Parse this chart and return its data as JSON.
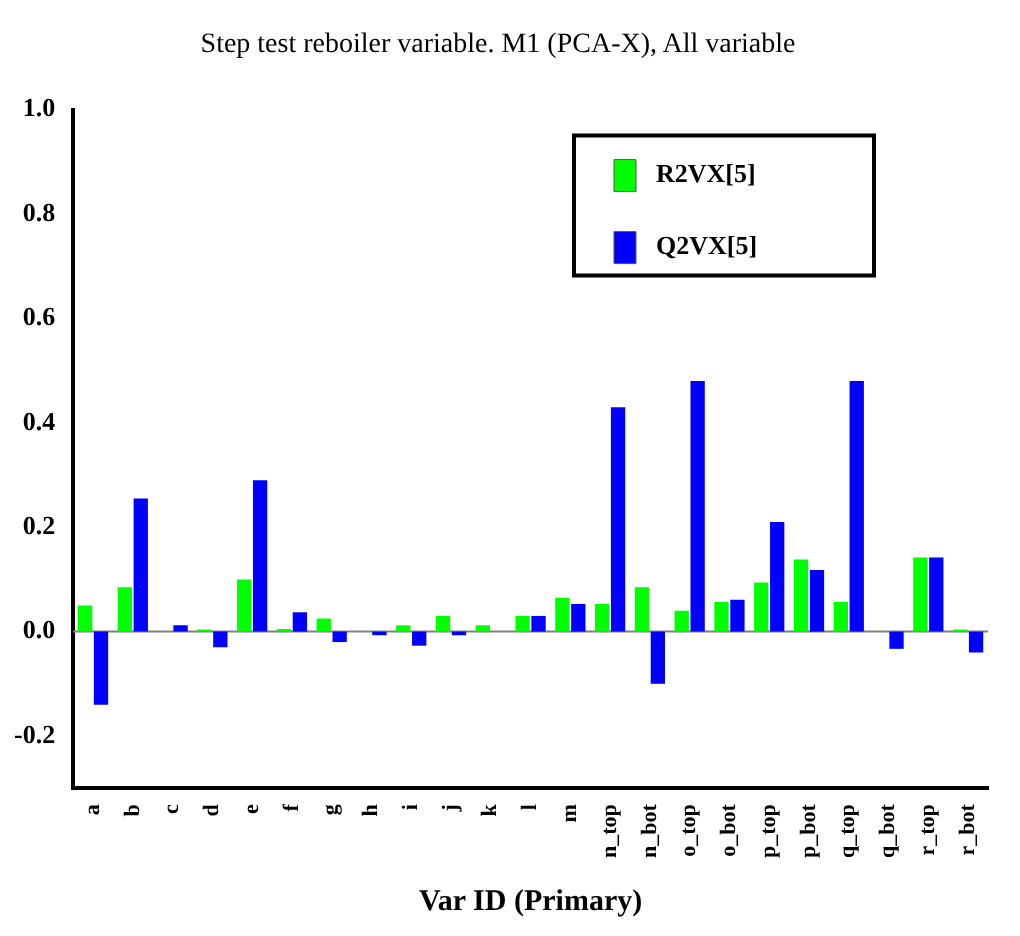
{
  "chart_data": {
    "type": "bar",
    "title": "Step test reboiler variable. M1 (PCA-X), All variable",
    "xlabel": "Var ID (Primary)",
    "categories": [
      "a",
      "b",
      "c",
      "d",
      "e",
      "f",
      "g",
      "h",
      "i",
      "j",
      "k",
      "l",
      "m",
      "n_top",
      "n_bot",
      "o_top",
      "o_bot",
      "p_top",
      "p_bot",
      "q_top",
      "q_bot",
      "r_top",
      "r_bot"
    ],
    "series": [
      {
        "name": "R2VX[5]",
        "color": "#00ff00",
        "values": [
          0.05,
          0.085,
          0,
          0.004,
          0.1,
          0.005,
          0.025,
          0,
          0.012,
          0.03,
          0.012,
          0.03,
          0.065,
          0.053,
          0.085,
          0.04,
          0.057,
          0.094,
          0.138,
          0.057,
          0,
          0.142,
          0.004
        ]
      },
      {
        "name": "Q2VX[5]",
        "color": "#0000ff",
        "values": [
          -0.14,
          0.255,
          0.012,
          -0.03,
          0.29,
          0.037,
          -0.02,
          -0.007,
          -0.027,
          -0.007,
          0,
          0.03,
          0.053,
          0.43,
          -0.1,
          0.48,
          0.061,
          0.21,
          0.118,
          0.48,
          -0.033,
          0.142,
          -0.04
        ]
      }
    ],
    "ylim": [
      -0.3,
      1.0
    ],
    "yticks": [
      {
        "value": -0.2,
        "label": "-0.2"
      },
      {
        "value": 0,
        "label": "0.0"
      },
      {
        "value": 0.2,
        "label": "0.2"
      },
      {
        "value": 0.4,
        "label": "0.4"
      },
      {
        "value": 0.6,
        "label": "0.6"
      },
      {
        "value": 0.8,
        "label": "0.8"
      },
      {
        "value": 1,
        "label": "1.0"
      }
    ],
    "ref_lines": [
      {
        "axis": "y",
        "value": 0,
        "color": "#808080"
      }
    ],
    "grid": false,
    "legend": "top right"
  }
}
